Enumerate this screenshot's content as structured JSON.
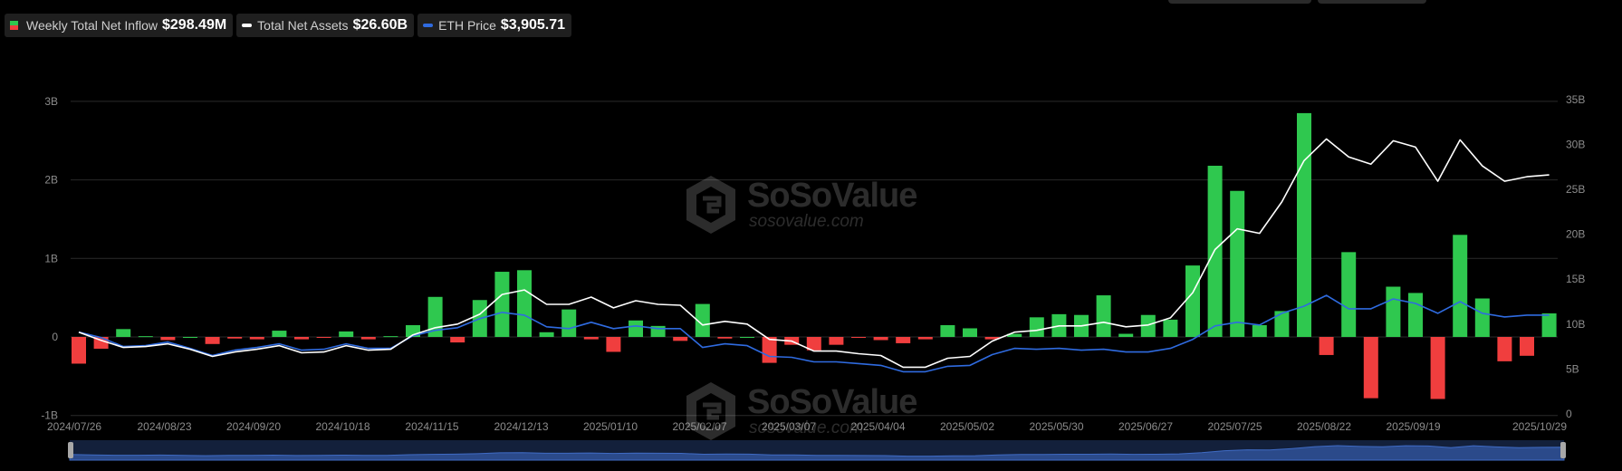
{
  "legend": {
    "inflow_label": "Weekly Total Net Inflow",
    "inflow_value": "$298.49M",
    "assets_label": "Total Net Assets",
    "assets_value": "$26.60B",
    "price_label": "ETH Price",
    "price_value": "$3,905.71"
  },
  "watermark": {
    "name": "SoSoValue",
    "url": "sosovalue.com"
  },
  "colors": {
    "positive": "#2fc84f",
    "negative": "#f03e3e",
    "assets_line": "#ffffff",
    "price_line": "#2f6be0",
    "grid": "#2a2a2a",
    "background": "#000000"
  },
  "chart_data": {
    "type": "bar",
    "x_tick_labels": [
      "2024/07/26",
      "2024/08/23",
      "2024/09/20",
      "2024/10/18",
      "2024/11/15",
      "2024/12/13",
      "2025/01/10",
      "2025/02/07",
      "2025/03/07",
      "2025/04/04",
      "2025/05/02",
      "2025/05/30",
      "2025/06/27",
      "2025/07/25",
      "2025/08/22",
      "2025/09/19",
      "2025/10/29"
    ],
    "y_left": {
      "ticks": [
        "-1B",
        "0",
        "1B",
        "2B",
        "3B"
      ],
      "values": [
        -1,
        0,
        1,
        2,
        3
      ],
      "unit": "B"
    },
    "y_right": {
      "ticks": [
        "0",
        "5B",
        "10B",
        "15B",
        "20B",
        "25B",
        "30B",
        "35B"
      ],
      "values": [
        0,
        5,
        10,
        15,
        20,
        25,
        30,
        35
      ],
      "unit": "B"
    },
    "grid": true,
    "series": [
      {
        "name": "Weekly Total Net Inflow",
        "type": "bar",
        "axis": "left",
        "unit": "B",
        "values": [
          -0.34,
          -0.15,
          0.1,
          0.01,
          -0.04,
          0.0,
          -0.09,
          -0.02,
          -0.03,
          0.08,
          -0.03,
          -0.01,
          0.07,
          -0.03,
          0.01,
          0.15,
          0.51,
          -0.07,
          0.47,
          0.83,
          0.85,
          0.06,
          0.35,
          -0.03,
          -0.19,
          0.21,
          0.14,
          -0.05,
          0.42,
          -0.02,
          0.0,
          -0.33,
          -0.1,
          -0.17,
          -0.1,
          -0.01,
          -0.04,
          -0.08,
          -0.03,
          0.15,
          0.11,
          -0.03,
          0.04,
          0.25,
          0.29,
          0.28,
          0.53,
          0.04,
          0.28,
          0.22,
          0.91,
          2.18,
          1.86,
          0.15,
          0.33,
          2.85,
          -0.23,
          1.08,
          -0.78,
          0.64,
          0.56,
          -0.79,
          1.3,
          0.49,
          -0.31,
          -0.24,
          0.3
        ]
      },
      {
        "name": "Total Net Assets",
        "type": "line",
        "axis": "right",
        "unit": "B",
        "values": [
          9.1,
          8.2,
          7.4,
          7.5,
          7.8,
          7.2,
          6.4,
          6.9,
          7.2,
          7.6,
          6.8,
          6.9,
          7.6,
          7.1,
          7.2,
          8.8,
          9.6,
          10.0,
          11.1,
          13.3,
          13.8,
          12.2,
          12.2,
          13.0,
          11.8,
          12.6,
          12.2,
          12.1,
          9.9,
          10.3,
          10.0,
          8.3,
          8.1,
          7.0,
          7.0,
          6.7,
          6.5,
          5.2,
          5.2,
          6.2,
          6.4,
          8.1,
          9.1,
          9.3,
          9.8,
          9.8,
          10.2,
          9.7,
          9.9,
          10.7,
          13.5,
          18.3,
          20.6,
          20.1,
          23.6,
          28.2,
          30.6,
          28.6,
          27.8,
          30.4,
          29.7,
          25.9,
          30.5,
          27.6,
          25.9,
          26.4,
          26.6
        ]
      },
      {
        "name": "ETH Price",
        "type": "line",
        "axis": "right",
        "unit": "B",
        "values": [
          9.1,
          8.5,
          7.5,
          7.6,
          8.0,
          7.3,
          6.5,
          7.1,
          7.4,
          7.8,
          7.1,
          7.2,
          7.8,
          7.3,
          7.3,
          8.7,
          9.3,
          9.6,
          10.6,
          11.3,
          11.0,
          9.7,
          9.5,
          10.2,
          9.5,
          9.8,
          9.5,
          9.5,
          7.4,
          7.8,
          7.6,
          6.4,
          6.3,
          5.8,
          5.8,
          5.6,
          5.4,
          4.7,
          4.7,
          5.3,
          5.4,
          6.6,
          7.3,
          7.2,
          7.3,
          7.1,
          7.2,
          6.9,
          6.9,
          7.3,
          8.3,
          9.8,
          10.2,
          9.9,
          11.2,
          12.0,
          13.2,
          11.7,
          11.7,
          12.8,
          12.3,
          11.2,
          12.5,
          11.2,
          10.8,
          11.0,
          11.0
        ]
      }
    ]
  }
}
